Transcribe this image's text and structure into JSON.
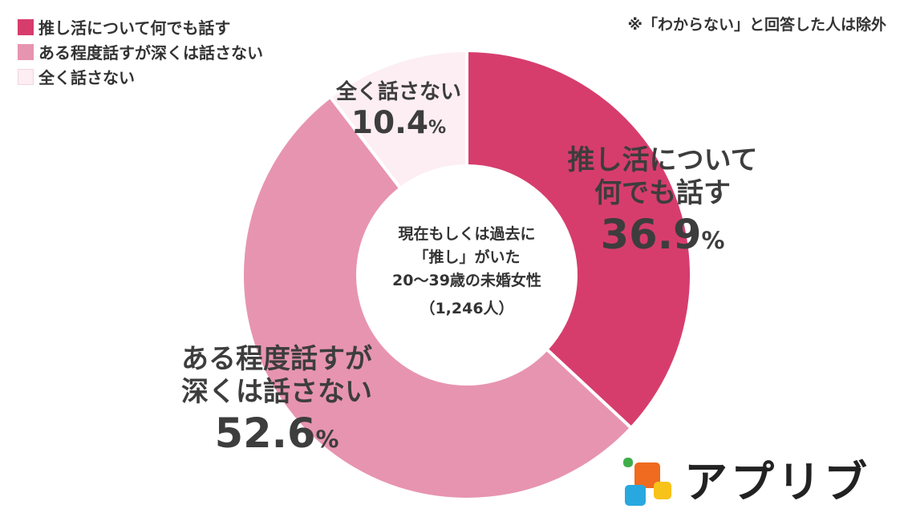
{
  "note": "※「わからない」と回答した人は除外",
  "center": {
    "line1": "現在もしくは過去に",
    "line2": "「推し」がいた",
    "line3": "20〜39歳の未婚女性",
    "count": "（1,246人）"
  },
  "chart_data": {
    "type": "pie",
    "variant": "donut",
    "title": "",
    "categories": [
      "推し活について何でも話す",
      "ある程度話すが深くは話さない",
      "全く話さない"
    ],
    "values": [
      36.9,
      52.6,
      10.4
    ],
    "unit": "%",
    "colors": [
      "#d63d6d",
      "#e794b0",
      "#fdeef3"
    ],
    "slice_labels": [
      {
        "lines": [
          "推し活について",
          "何でも話す"
        ],
        "value": "36.9",
        "unit": "%"
      },
      {
        "lines": [
          "ある程度話すが",
          "深くは話さない"
        ],
        "value": "52.6",
        "unit": "%"
      },
      {
        "lines": [
          "全く話さない"
        ],
        "value": "10.4",
        "unit": "%"
      }
    ],
    "legend": {
      "position": "top-left",
      "items": [
        "推し活について何でも話す",
        "ある程度話すが深くは話さない",
        "全く話さない"
      ]
    }
  },
  "logo": {
    "text": "アプリブ",
    "colors": [
      "#3fae49",
      "#f06a1f",
      "#29a8e0",
      "#f7c21a"
    ]
  }
}
